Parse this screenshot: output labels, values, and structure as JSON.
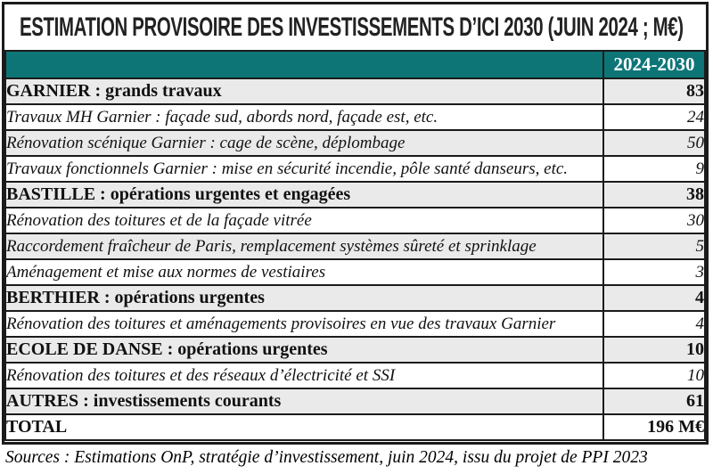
{
  "title": "ESTIMATION PROVISOIRE DES INVESTISSEMENTS D’ICI 2030 (JUIN 2024 ; M€)",
  "table": {
    "label_column_header": "",
    "value_column_header": "2024-2030",
    "rows": [
      {
        "label": "GARNIER : grands travaux",
        "value": "83",
        "type": "category"
      },
      {
        "label": "Travaux MH Garnier : façade sud, abords nord, façade est, etc.",
        "value": "24",
        "type": "detail"
      },
      {
        "label": "Rénovation scénique Garnier : cage de scène, déplombage",
        "value": "50",
        "type": "detail"
      },
      {
        "label": "Travaux fonctionnels Garnier : mise en sécurité incendie, pôle santé danseurs, etc.",
        "value": "9",
        "type": "detail"
      },
      {
        "label": "BASTILLE : opérations urgentes et engagées",
        "value": "38",
        "type": "category"
      },
      {
        "label": "Rénovation des toitures et de la façade vitrée",
        "value": "30",
        "type": "detail"
      },
      {
        "label": "Raccordement fraîcheur de Paris, remplacement systèmes sûreté et sprinklage",
        "value": "5",
        "type": "detail"
      },
      {
        "label": "Aménagement et mise aux normes de vestiaires",
        "value": "3",
        "type": "detail"
      },
      {
        "label": "BERTHIER : opérations urgentes",
        "value": "4",
        "type": "category"
      },
      {
        "label": "Rénovation des toitures et aménagements provisoires en vue des travaux Garnier",
        "value": "4",
        "type": "detail"
      },
      {
        "label": "ECOLE DE DANSE : opérations urgentes",
        "value": "10",
        "type": "category"
      },
      {
        "label": "Rénovation des toitures et des réseaux d’électricité et SSI",
        "value": "10",
        "type": "detail"
      },
      {
        "label": "AUTRES : investissements courants",
        "value": "61",
        "type": "category"
      },
      {
        "label": "TOTAL",
        "value": "196 M€",
        "type": "total"
      }
    ]
  },
  "footer": "Sources : Estimations OnP, stratégie d’investissement, juin 2024, issu du projet de PPI 2023",
  "colors": {
    "header_background": "#0e7577",
    "header_text": "#ffffff",
    "row_shaded": "#eaeaea",
    "row_plain": "#ffffff",
    "border": "#1b1b1b"
  }
}
